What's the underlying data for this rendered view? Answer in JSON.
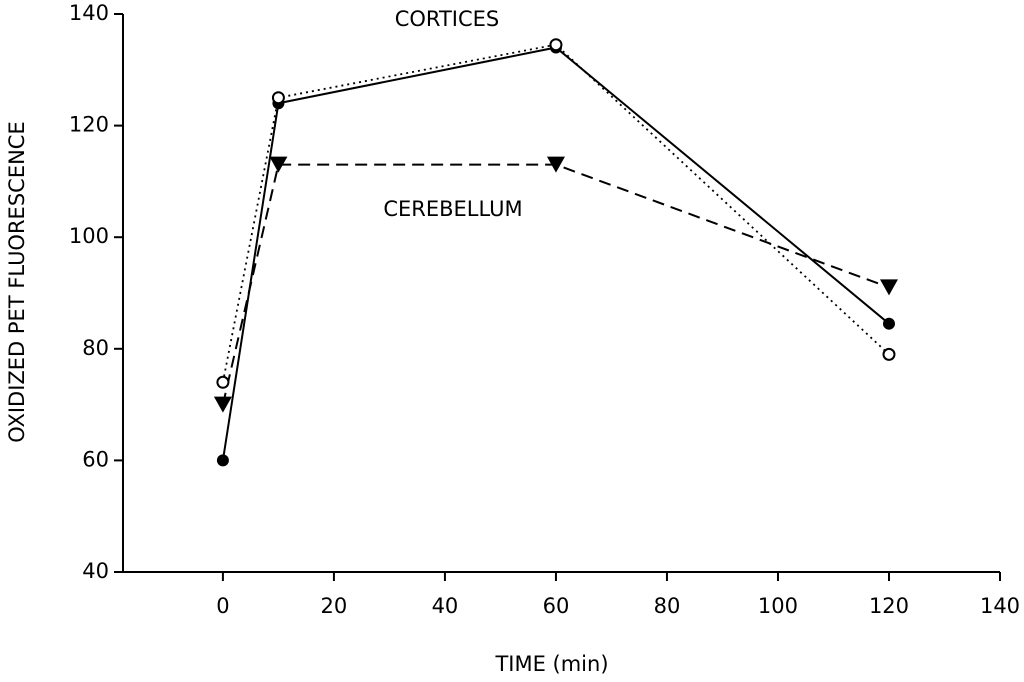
{
  "chart_data": {
    "type": "line",
    "x_label": "TIME  (min)",
    "y_label": "OXIDIZED PET FLUORESCENCE",
    "annotations": [
      "CORTICES",
      "CEREBELLUM"
    ],
    "x": [
      0,
      10,
      60,
      120
    ],
    "series": [
      {
        "color": "#000000",
        "marker": "filled-circle",
        "linestyle": "solid",
        "values": [
          60,
          124,
          134,
          84.5
        ]
      },
      {
        "color": "#000000",
        "marker": "open-circle",
        "linestyle": "dotted",
        "values": [
          74,
          125,
          134.5,
          79
        ]
      },
      {
        "color": "#000000",
        "marker": "triangle-down",
        "linestyle": "dashed",
        "values": [
          70,
          113,
          113,
          91
        ]
      }
    ],
    "xlim": [
      -18,
      140
    ],
    "xticks": [
      0,
      20,
      40,
      60,
      80,
      100,
      120,
      140
    ],
    "ylim": [
      40,
      140
    ],
    "yticks": [
      40,
      60,
      80,
      100,
      120,
      140
    ],
    "grid": false
  }
}
